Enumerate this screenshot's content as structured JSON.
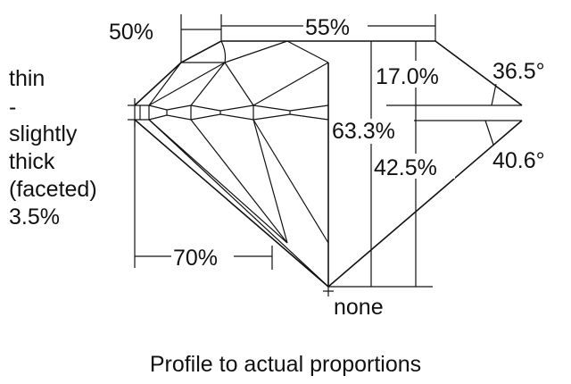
{
  "labels": {
    "crown_height_left": "50%",
    "table": "55%",
    "crown_height": "17.0%",
    "crown_angle": "36.5°",
    "total_depth": "63.3%",
    "pavilion_depth": "42.5%",
    "pavilion_angle": "40.6°",
    "lower_half": "70%",
    "culet": "none",
    "girdle": [
      "thin",
      "-",
      "slightly",
      "thick",
      "(faceted)",
      "3.5%"
    ]
  },
  "caption": "Profile to actual proportions"
}
